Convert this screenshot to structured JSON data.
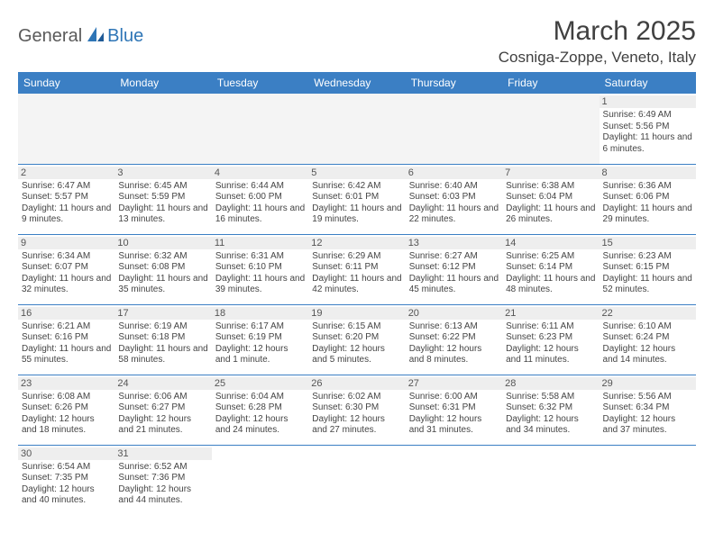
{
  "logo": {
    "part1": "General",
    "part2": "Blue"
  },
  "title": "March 2025",
  "location": "Cosniga-Zoppe, Veneto, Italy",
  "colors": {
    "header_bg": "#3b7fc4",
    "header_text": "#ffffff",
    "border": "#3b7fc4",
    "daynum_bg": "#eeeeee",
    "logo_gray": "#5a5a5a",
    "logo_blue": "#2e75b6"
  },
  "weekdays": [
    "Sunday",
    "Monday",
    "Tuesday",
    "Wednesday",
    "Thursday",
    "Friday",
    "Saturday"
  ],
  "weeks": [
    [
      null,
      null,
      null,
      null,
      null,
      null,
      {
        "n": "1",
        "sunrise": "6:49 AM",
        "sunset": "5:56 PM",
        "daylight": "11 hours and 6 minutes."
      }
    ],
    [
      {
        "n": "2",
        "sunrise": "6:47 AM",
        "sunset": "5:57 PM",
        "daylight": "11 hours and 9 minutes."
      },
      {
        "n": "3",
        "sunrise": "6:45 AM",
        "sunset": "5:59 PM",
        "daylight": "11 hours and 13 minutes."
      },
      {
        "n": "4",
        "sunrise": "6:44 AM",
        "sunset": "6:00 PM",
        "daylight": "11 hours and 16 minutes."
      },
      {
        "n": "5",
        "sunrise": "6:42 AM",
        "sunset": "6:01 PM",
        "daylight": "11 hours and 19 minutes."
      },
      {
        "n": "6",
        "sunrise": "6:40 AM",
        "sunset": "6:03 PM",
        "daylight": "11 hours and 22 minutes."
      },
      {
        "n": "7",
        "sunrise": "6:38 AM",
        "sunset": "6:04 PM",
        "daylight": "11 hours and 26 minutes."
      },
      {
        "n": "8",
        "sunrise": "6:36 AM",
        "sunset": "6:06 PM",
        "daylight": "11 hours and 29 minutes."
      }
    ],
    [
      {
        "n": "9",
        "sunrise": "6:34 AM",
        "sunset": "6:07 PM",
        "daylight": "11 hours and 32 minutes."
      },
      {
        "n": "10",
        "sunrise": "6:32 AM",
        "sunset": "6:08 PM",
        "daylight": "11 hours and 35 minutes."
      },
      {
        "n": "11",
        "sunrise": "6:31 AM",
        "sunset": "6:10 PM",
        "daylight": "11 hours and 39 minutes."
      },
      {
        "n": "12",
        "sunrise": "6:29 AM",
        "sunset": "6:11 PM",
        "daylight": "11 hours and 42 minutes."
      },
      {
        "n": "13",
        "sunrise": "6:27 AM",
        "sunset": "6:12 PM",
        "daylight": "11 hours and 45 minutes."
      },
      {
        "n": "14",
        "sunrise": "6:25 AM",
        "sunset": "6:14 PM",
        "daylight": "11 hours and 48 minutes."
      },
      {
        "n": "15",
        "sunrise": "6:23 AM",
        "sunset": "6:15 PM",
        "daylight": "11 hours and 52 minutes."
      }
    ],
    [
      {
        "n": "16",
        "sunrise": "6:21 AM",
        "sunset": "6:16 PM",
        "daylight": "11 hours and 55 minutes."
      },
      {
        "n": "17",
        "sunrise": "6:19 AM",
        "sunset": "6:18 PM",
        "daylight": "11 hours and 58 minutes."
      },
      {
        "n": "18",
        "sunrise": "6:17 AM",
        "sunset": "6:19 PM",
        "daylight": "12 hours and 1 minute."
      },
      {
        "n": "19",
        "sunrise": "6:15 AM",
        "sunset": "6:20 PM",
        "daylight": "12 hours and 5 minutes."
      },
      {
        "n": "20",
        "sunrise": "6:13 AM",
        "sunset": "6:22 PM",
        "daylight": "12 hours and 8 minutes."
      },
      {
        "n": "21",
        "sunrise": "6:11 AM",
        "sunset": "6:23 PM",
        "daylight": "12 hours and 11 minutes."
      },
      {
        "n": "22",
        "sunrise": "6:10 AM",
        "sunset": "6:24 PM",
        "daylight": "12 hours and 14 minutes."
      }
    ],
    [
      {
        "n": "23",
        "sunrise": "6:08 AM",
        "sunset": "6:26 PM",
        "daylight": "12 hours and 18 minutes."
      },
      {
        "n": "24",
        "sunrise": "6:06 AM",
        "sunset": "6:27 PM",
        "daylight": "12 hours and 21 minutes."
      },
      {
        "n": "25",
        "sunrise": "6:04 AM",
        "sunset": "6:28 PM",
        "daylight": "12 hours and 24 minutes."
      },
      {
        "n": "26",
        "sunrise": "6:02 AM",
        "sunset": "6:30 PM",
        "daylight": "12 hours and 27 minutes."
      },
      {
        "n": "27",
        "sunrise": "6:00 AM",
        "sunset": "6:31 PM",
        "daylight": "12 hours and 31 minutes."
      },
      {
        "n": "28",
        "sunrise": "5:58 AM",
        "sunset": "6:32 PM",
        "daylight": "12 hours and 34 minutes."
      },
      {
        "n": "29",
        "sunrise": "5:56 AM",
        "sunset": "6:34 PM",
        "daylight": "12 hours and 37 minutes."
      }
    ],
    [
      {
        "n": "30",
        "sunrise": "6:54 AM",
        "sunset": "7:35 PM",
        "daylight": "12 hours and 40 minutes."
      },
      {
        "n": "31",
        "sunrise": "6:52 AM",
        "sunset": "7:36 PM",
        "daylight": "12 hours and 44 minutes."
      },
      null,
      null,
      null,
      null,
      null
    ]
  ],
  "labels": {
    "sunrise": "Sunrise:",
    "sunset": "Sunset:",
    "daylight": "Daylight:"
  }
}
